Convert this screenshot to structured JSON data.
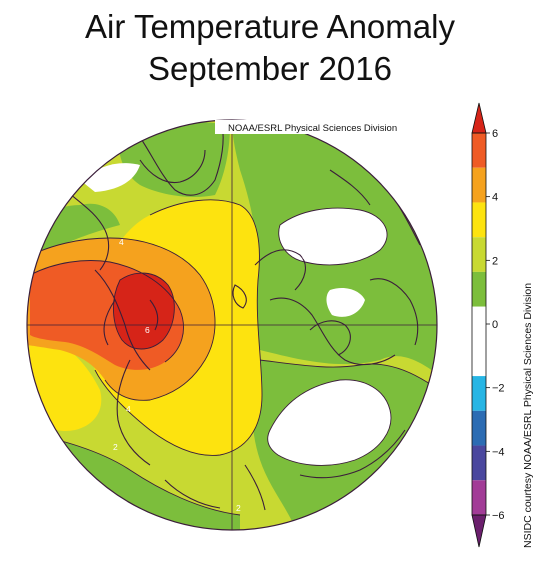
{
  "title_line1": "Air Temperature Anomaly",
  "title_line2": "September 2016",
  "map_credit": "NOAA/ESRL Physical Sciences Division",
  "side_credit": "NSIDC courtesy NOAA/ESRL Physical Sciences Division",
  "colorbar": {
    "ticks": [
      "6",
      "4",
      "2",
      "0",
      "−2",
      "−4",
      "−6"
    ],
    "colors": [
      "#d62418",
      "#ef5b25",
      "#f5a21e",
      "#fde30f",
      "#c8d932",
      "#7cbe3c",
      "#ffffff",
      "#ffffff",
      "#27b5e4",
      "#2c6cb3",
      "#4a479e",
      "#a23c97",
      "#6b1f6d"
    ]
  },
  "contour_labels": [
    "4",
    "6",
    "4",
    "2",
    "2",
    "2",
    "0"
  ],
  "colors": {
    "red": "#d62418",
    "orange_red": "#ef5b25",
    "orange": "#f5a21e",
    "yellow": "#fde30f",
    "yellow_green": "#c8d932",
    "green": "#7cbe3c",
    "white": "#ffffff",
    "coast": "#3b1e3a"
  }
}
